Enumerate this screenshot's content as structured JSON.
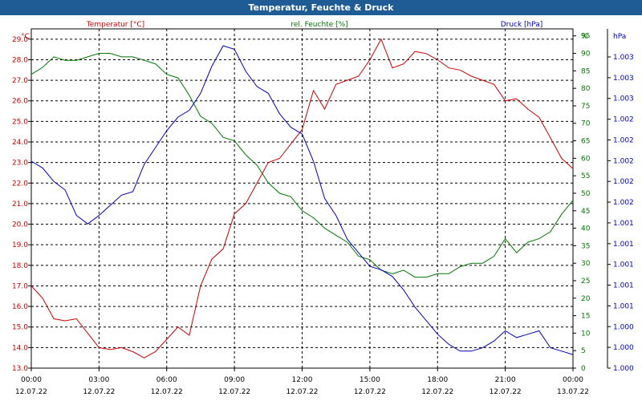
{
  "title": "Temperatur, Feuchte & Druck",
  "colors": {
    "temperature": "#cc0000",
    "humidity": "#007700",
    "pressure": "#0000bb",
    "titlebar": "#1f5c96"
  },
  "chart_data": {
    "type": "line",
    "title": "Temperatur, Feuchte & Druck",
    "grid": true,
    "series_labels": {
      "temperature": "Temperatur [°C]",
      "humidity": "rel. Feuchte [%]",
      "pressure": "Druck [hPa]"
    },
    "axes": {
      "left": {
        "unit": "°C",
        "range": [
          13.0,
          29.5
        ],
        "ticks": [
          "13.0",
          "14.0",
          "15.0",
          "16.0",
          "17.0",
          "18.0",
          "19.0",
          "20.0",
          "21.0",
          "22.0",
          "23.0",
          "24.0",
          "25.0",
          "26.0",
          "27.0",
          "28.0",
          "29.0"
        ]
      },
      "right": {
        "unit": "%",
        "range": [
          0,
          97
        ],
        "ticks": [
          "0",
          "5",
          "10",
          "15",
          "20",
          "25",
          "30",
          "35",
          "40",
          "45",
          "50",
          "55",
          "60",
          "65",
          "70",
          "75",
          "80",
          "85",
          "90",
          "95"
        ]
      },
      "pressure": {
        "unit": "hPa",
        "ticks": [
          "1.000",
          "1.000",
          "1.000",
          "1.001",
          "1.001",
          "1.001",
          "1.001",
          "1.001",
          "1.002",
          "1.002",
          "1.002",
          "1.002",
          "1.002",
          "1.003",
          "1.003",
          "1.003"
        ]
      },
      "x": {
        "ticks": [
          {
            "time": "00:00",
            "date": "12.07.22"
          },
          {
            "time": "03:00",
            "date": "12.07.22"
          },
          {
            "time": "06:00",
            "date": "12.07.22"
          },
          {
            "time": "09:00",
            "date": "12.07.22"
          },
          {
            "time": "12:00",
            "date": "12.07.22"
          },
          {
            "time": "15:00",
            "date": "12.07.22"
          },
          {
            "time": "18:00",
            "date": "12.07.22"
          },
          {
            "time": "21:00",
            "date": "12.07.22"
          },
          {
            "time": "00:00",
            "date": "13.07.22"
          }
        ]
      }
    },
    "x_hours": [
      0,
      0.5,
      1,
      1.5,
      2,
      2.5,
      3,
      3.5,
      4,
      4.5,
      5,
      5.5,
      6,
      6.5,
      7,
      7.5,
      8,
      8.5,
      9,
      9.5,
      10,
      10.5,
      11,
      11.5,
      12,
      12.5,
      13,
      13.5,
      14,
      14.5,
      15,
      15.5,
      16,
      16.5,
      17,
      17.5,
      18,
      18.5,
      19,
      19.5,
      20,
      20.5,
      21,
      21.5,
      22,
      22.5,
      23,
      23.5,
      24
    ],
    "temperature": [
      17.0,
      16.4,
      15.4,
      15.3,
      15.4,
      14.7,
      14.0,
      13.9,
      14.0,
      13.8,
      13.5,
      13.8,
      14.4,
      15.0,
      14.6,
      17.0,
      18.3,
      18.8,
      20.5,
      21.0,
      22.0,
      23.0,
      23.2,
      23.9,
      24.6,
      26.5,
      25.6,
      26.8,
      27.0,
      27.2,
      28.0,
      29.0,
      27.6,
      27.8,
      28.4,
      28.3,
      28.0,
      27.6,
      27.5,
      27.2,
      27.0,
      26.8,
      26.0,
      26.1,
      25.6,
      25.2,
      24.2,
      23.2,
      22.7
    ],
    "humidity": [
      84,
      86,
      89,
      88,
      88,
      89,
      90,
      90,
      89,
      89,
      88,
      87,
      84,
      83,
      78,
      72,
      70,
      66,
      65,
      61,
      58,
      53,
      50,
      49,
      45,
      43,
      40,
      38,
      36,
      32,
      31,
      28,
      27,
      28,
      26,
      26,
      27,
      27,
      29,
      30,
      30,
      32,
      37,
      33,
      36,
      37,
      39,
      44,
      48
    ],
    "pressure": [
      1001.52,
      1001.48,
      1001.4,
      1001.35,
      1001.2,
      1001.15,
      1001.2,
      1001.26,
      1001.32,
      1001.34,
      1001.5,
      1001.6,
      1001.7,
      1001.78,
      1001.82,
      1001.92,
      1002.08,
      1002.2,
      1002.18,
      1002.05,
      1001.96,
      1001.92,
      1001.8,
      1001.72,
      1001.68,
      1001.52,
      1001.3,
      1001.2,
      1001.06,
      1000.98,
      1000.9,
      1000.88,
      1000.84,
      1000.76,
      1000.66,
      1000.58,
      1000.5,
      1000.44,
      1000.4,
      1000.4,
      1000.42,
      1000.46,
      1000.52,
      1000.48,
      1000.5,
      1000.52,
      1000.42,
      1000.4,
      1000.38
    ]
  }
}
